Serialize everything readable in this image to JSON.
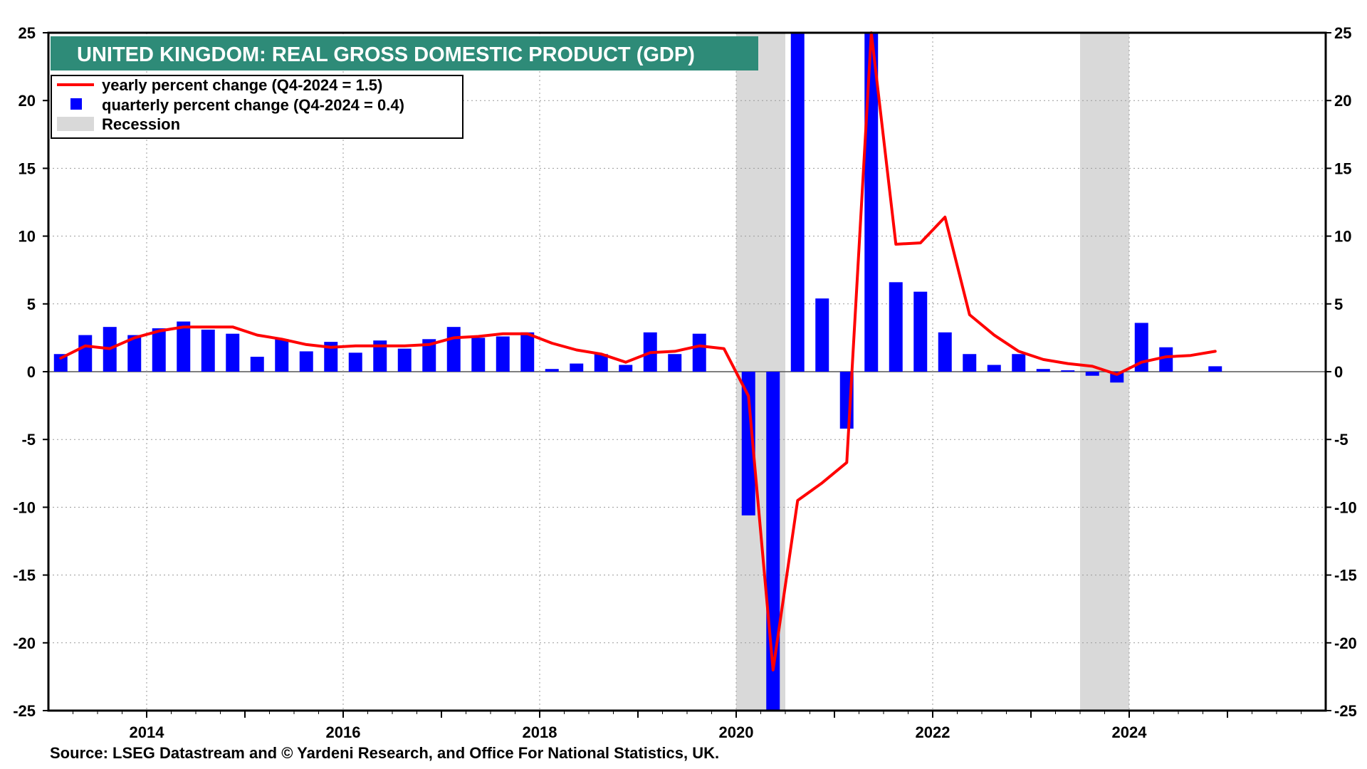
{
  "chart_data": {
    "type": "bar",
    "title": "UNITED KINGDOM: REAL GROSS DOMESTIC PRODUCT (GDP)",
    "source": "Source: LSEG Datastream and © Yardeni Research, and Office For National Statistics, UK.",
    "xlim": [
      2013.0,
      2026.0
    ],
    "ylim": [
      -25,
      25
    ],
    "y_ticks": [
      25,
      20,
      15,
      10,
      5,
      0,
      -5,
      -10,
      -15,
      -20,
      -25
    ],
    "x_ticks": [
      2014,
      2016,
      2018,
      2020,
      2022,
      2024
    ],
    "grid": "dotted",
    "legend_position": "top-left",
    "colors": {
      "bars": "#0000ff",
      "line": "#ff0000",
      "recession": "#d9d9d9",
      "title_bg": "#2e8b78"
    },
    "recessions": [
      {
        "start": 2020.0,
        "end": 2020.5
      },
      {
        "start": 2023.5,
        "end": 2024.0
      }
    ],
    "series": [
      {
        "name": "quarterly percent change",
        "legend_label": "quarterly percent change (Q4-2024 = 0.4)",
        "kind": "bar",
        "points": [
          {
            "x": 2013.125,
            "y": 1.3
          },
          {
            "x": 2013.375,
            "y": 2.7
          },
          {
            "x": 2013.625,
            "y": 3.3
          },
          {
            "x": 2013.875,
            "y": 2.7
          },
          {
            "x": 2014.125,
            "y": 3.2
          },
          {
            "x": 2014.375,
            "y": 3.7
          },
          {
            "x": 2014.625,
            "y": 3.1
          },
          {
            "x": 2014.875,
            "y": 2.8
          },
          {
            "x": 2015.125,
            "y": 1.1
          },
          {
            "x": 2015.375,
            "y": 2.4
          },
          {
            "x": 2015.625,
            "y": 1.5
          },
          {
            "x": 2015.875,
            "y": 2.2
          },
          {
            "x": 2016.125,
            "y": 1.4
          },
          {
            "x": 2016.375,
            "y": 2.3
          },
          {
            "x": 2016.625,
            "y": 1.7
          },
          {
            "x": 2016.875,
            "y": 2.4
          },
          {
            "x": 2017.125,
            "y": 3.3
          },
          {
            "x": 2017.375,
            "y": 2.5
          },
          {
            "x": 2017.625,
            "y": 2.6
          },
          {
            "x": 2017.875,
            "y": 2.9
          },
          {
            "x": 2018.125,
            "y": 0.2
          },
          {
            "x": 2018.375,
            "y": 0.6
          },
          {
            "x": 2018.625,
            "y": 1.3
          },
          {
            "x": 2018.875,
            "y": 0.5
          },
          {
            "x": 2019.125,
            "y": 2.9
          },
          {
            "x": 2019.375,
            "y": 1.3
          },
          {
            "x": 2019.625,
            "y": 2.8
          },
          {
            "x": 2019.875,
            "y": 0.0
          },
          {
            "x": 2020.125,
            "y": -10.6
          },
          {
            "x": 2020.375,
            "y": -25.0
          },
          {
            "x": 2020.625,
            "y": 25.0
          },
          {
            "x": 2020.875,
            "y": 5.4
          },
          {
            "x": 2021.125,
            "y": -4.2
          },
          {
            "x": 2021.375,
            "y": 25.0
          },
          {
            "x": 2021.625,
            "y": 6.6
          },
          {
            "x": 2021.875,
            "y": 5.9
          },
          {
            "x": 2022.125,
            "y": 2.9
          },
          {
            "x": 2022.375,
            "y": 1.3
          },
          {
            "x": 2022.625,
            "y": 0.5
          },
          {
            "x": 2022.875,
            "y": 1.3
          },
          {
            "x": 2023.125,
            "y": 0.2
          },
          {
            "x": 2023.375,
            "y": 0.1
          },
          {
            "x": 2023.625,
            "y": -0.3
          },
          {
            "x": 2023.875,
            "y": -0.8
          },
          {
            "x": 2024.125,
            "y": 3.6
          },
          {
            "x": 2024.375,
            "y": 1.8
          },
          {
            "x": 2024.625,
            "y": 0.0
          },
          {
            "x": 2024.875,
            "y": 0.4
          }
        ]
      },
      {
        "name": "yearly percent change",
        "legend_label": "yearly percent change (Q4-2024 = 1.5)",
        "kind": "line",
        "points": [
          {
            "x": 2013.125,
            "y": 1.0
          },
          {
            "x": 2013.375,
            "y": 1.9
          },
          {
            "x": 2013.625,
            "y": 1.7
          },
          {
            "x": 2013.875,
            "y": 2.5
          },
          {
            "x": 2014.125,
            "y": 3.0
          },
          {
            "x": 2014.375,
            "y": 3.3
          },
          {
            "x": 2014.625,
            "y": 3.3
          },
          {
            "x": 2014.875,
            "y": 3.3
          },
          {
            "x": 2015.125,
            "y": 2.7
          },
          {
            "x": 2015.375,
            "y": 2.4
          },
          {
            "x": 2015.625,
            "y": 2.0
          },
          {
            "x": 2015.875,
            "y": 1.8
          },
          {
            "x": 2016.125,
            "y": 1.9
          },
          {
            "x": 2016.375,
            "y": 1.9
          },
          {
            "x": 2016.625,
            "y": 1.9
          },
          {
            "x": 2016.875,
            "y": 2.0
          },
          {
            "x": 2017.125,
            "y": 2.5
          },
          {
            "x": 2017.375,
            "y": 2.6
          },
          {
            "x": 2017.625,
            "y": 2.8
          },
          {
            "x": 2017.875,
            "y": 2.8
          },
          {
            "x": 2018.125,
            "y": 2.1
          },
          {
            "x": 2018.375,
            "y": 1.6
          },
          {
            "x": 2018.625,
            "y": 1.3
          },
          {
            "x": 2018.875,
            "y": 0.7
          },
          {
            "x": 2019.125,
            "y": 1.4
          },
          {
            "x": 2019.375,
            "y": 1.5
          },
          {
            "x": 2019.625,
            "y": 1.9
          },
          {
            "x": 2019.875,
            "y": 1.7
          },
          {
            "x": 2020.125,
            "y": -1.8
          },
          {
            "x": 2020.375,
            "y": -22.0
          },
          {
            "x": 2020.625,
            "y": -9.5
          },
          {
            "x": 2020.875,
            "y": -8.2
          },
          {
            "x": 2021.125,
            "y": -6.7
          },
          {
            "x": 2021.375,
            "y": 25.0
          },
          {
            "x": 2021.625,
            "y": 9.4
          },
          {
            "x": 2021.875,
            "y": 9.5
          },
          {
            "x": 2022.125,
            "y": 11.4
          },
          {
            "x": 2022.375,
            "y": 4.2
          },
          {
            "x": 2022.625,
            "y": 2.7
          },
          {
            "x": 2022.875,
            "y": 1.5
          },
          {
            "x": 2023.125,
            "y": 0.9
          },
          {
            "x": 2023.375,
            "y": 0.6
          },
          {
            "x": 2023.625,
            "y": 0.4
          },
          {
            "x": 2023.875,
            "y": -0.2
          },
          {
            "x": 2024.125,
            "y": 0.7
          },
          {
            "x": 2024.375,
            "y": 1.1
          },
          {
            "x": 2024.625,
            "y": 1.2
          },
          {
            "x": 2024.875,
            "y": 1.5
          }
        ]
      }
    ],
    "legend": [
      {
        "label": "yearly percent change (Q4-2024 = 1.5)",
        "marker": "line",
        "color": "#ff0000"
      },
      {
        "label": "quarterly percent change (Q4-2024 = 0.4)",
        "marker": "square",
        "color": "#0000ff"
      },
      {
        "label": "Recession",
        "marker": "band",
        "color": "#d9d9d9"
      }
    ]
  }
}
